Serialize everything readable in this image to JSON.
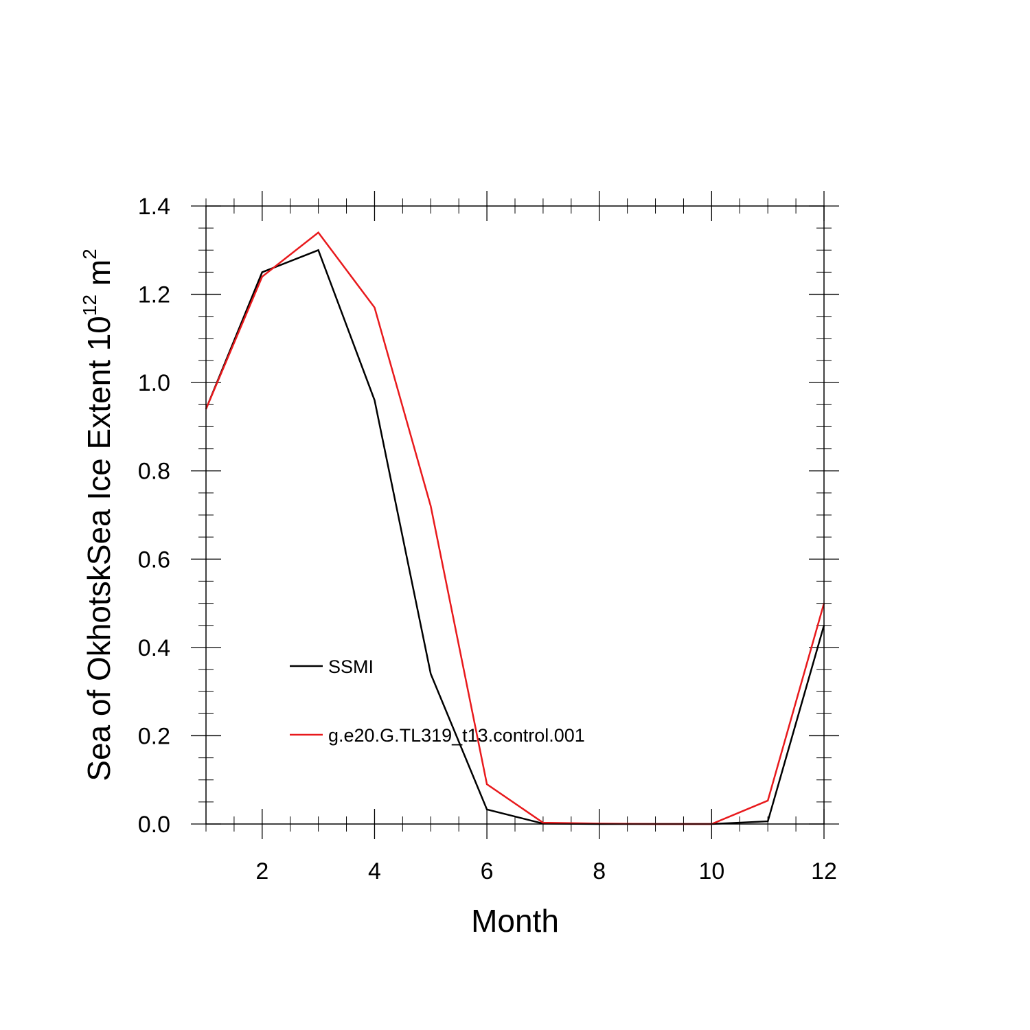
{
  "chart_data": {
    "type": "line",
    "xlabel": "Month",
    "ylabel_main": "Sea of OkhotskSea Ice Extent 10",
    "ylabel_sup": "12",
    "ylabel_unit": " m",
    "ylabel_unit_sup": "2",
    "xlim": [
      1,
      12
    ],
    "ylim": [
      0,
      1.4
    ],
    "x_ticks": [
      2,
      4,
      6,
      8,
      10,
      12
    ],
    "x_tick_labels": [
      "2",
      "4",
      "6",
      "8",
      "10",
      "12"
    ],
    "y_ticks": [
      0,
      0.2,
      0.4,
      0.6,
      0.8,
      1.0,
      1.2,
      1.4
    ],
    "y_tick_labels": [
      "0.0",
      "0.2",
      "0.4",
      "0.6",
      "0.8",
      "1.0",
      "1.2",
      "1.4"
    ],
    "grid": false,
    "legend_position": "lower-left",
    "x": [
      1,
      2,
      3,
      4,
      5,
      6,
      7,
      8,
      9,
      10,
      11,
      12
    ],
    "series": [
      {
        "name": "SSMI",
        "color": "#000000",
        "values": [
          0.94,
          1.25,
          1.3,
          0.96,
          0.34,
          0.033,
          0.001,
          0.0,
          0.0,
          0.0,
          0.006,
          0.45
        ]
      },
      {
        "name": "g.e20.G.TL319_t13.control.001",
        "color": "#e8191c",
        "values": [
          0.94,
          1.24,
          1.34,
          1.17,
          0.72,
          0.09,
          0.003,
          0.001,
          0.0,
          0.0,
          0.053,
          0.5
        ]
      }
    ]
  }
}
